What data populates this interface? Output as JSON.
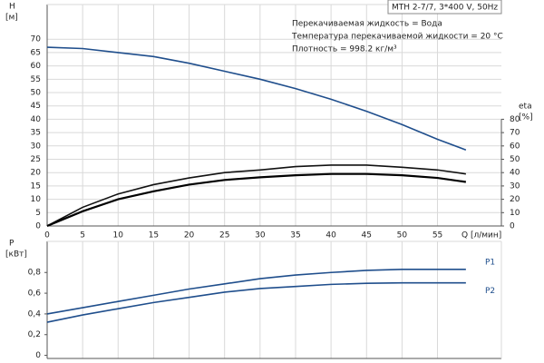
{
  "chart_data": [
    {
      "type": "line",
      "title": "MTH 2-7/7, 3*400 V, 50Hz",
      "annotations": [
        "Перекачиваемая жидкость = Вода",
        "Температура перекачиваемой жидкости = 20 °C",
        "Плотность = 998.2 кг/м³"
      ],
      "y_label": "H",
      "y_unit": "[м]",
      "y2_label": "eta",
      "y2_unit": "[%]",
      "x_label": "Q [л/мин]",
      "x": [
        0,
        5,
        10,
        15,
        20,
        25,
        30,
        35,
        40,
        45,
        50,
        55,
        59
      ],
      "xlim": [
        0,
        64
      ],
      "xticks": [
        0,
        5,
        10,
        15,
        20,
        25,
        30,
        35,
        40,
        45,
        50,
        55
      ],
      "ylim": [
        0,
        83
      ],
      "yticks": [
        0,
        5,
        10,
        15,
        20,
        25,
        30,
        35,
        40,
        45,
        50,
        55,
        60,
        65,
        70
      ],
      "y2lim": [
        0,
        166
      ],
      "y2ticks": [
        0,
        10,
        20,
        30,
        40,
        50,
        60,
        70,
        80
      ],
      "grid": true,
      "series": [
        {
          "color": "#1f4e8c",
          "values": [
            67,
            66.5,
            65,
            63.5,
            61,
            58,
            55,
            51.5,
            47.5,
            43,
            38,
            32.5,
            28.5
          ]
        },
        {
          "color": "#111111",
          "axis": "y2",
          "values": [
            0,
            14,
            24,
            31,
            36,
            40,
            42,
            44.5,
            45.6,
            45.6,
            44,
            42,
            39
          ]
        },
        {
          "color": "#000000",
          "axis": "y2",
          "values": [
            0,
            11,
            20,
            26,
            31,
            34.5,
            36.5,
            38,
            39,
            39,
            38,
            36,
            33
          ]
        }
      ]
    },
    {
      "type": "line",
      "y_label": "P",
      "y_unit": "[кВт]",
      "x": [
        0,
        5,
        10,
        15,
        20,
        25,
        30,
        35,
        40,
        45,
        50,
        55,
        59
      ],
      "xlim": [
        0,
        64
      ],
      "xticks": [
        0,
        5,
        10,
        15,
        20,
        25,
        30,
        35,
        40,
        45,
        50,
        55
      ],
      "ylim": [
        -0.03,
        1.1
      ],
      "yticks": [
        0,
        {
          "value": 0.2,
          "label": "0,2"
        },
        {
          "value": 0.4,
          "label": "0,4"
        },
        {
          "value": 0.6,
          "label": "0,6"
        },
        {
          "value": 0.8,
          "label": "0,8"
        }
      ],
      "grid": true,
      "series": [
        {
          "name": "P1",
          "color": "#1f4e8c",
          "values": [
            0.4,
            0.46,
            0.52,
            0.58,
            0.64,
            0.69,
            0.74,
            0.775,
            0.8,
            0.82,
            0.83,
            0.83,
            0.83
          ]
        },
        {
          "name": "P2",
          "color": "#1f4e8c",
          "values": [
            0.32,
            0.39,
            0.45,
            0.51,
            0.56,
            0.61,
            0.645,
            0.665,
            0.685,
            0.695,
            0.7,
            0.7,
            0.7
          ]
        }
      ]
    }
  ]
}
